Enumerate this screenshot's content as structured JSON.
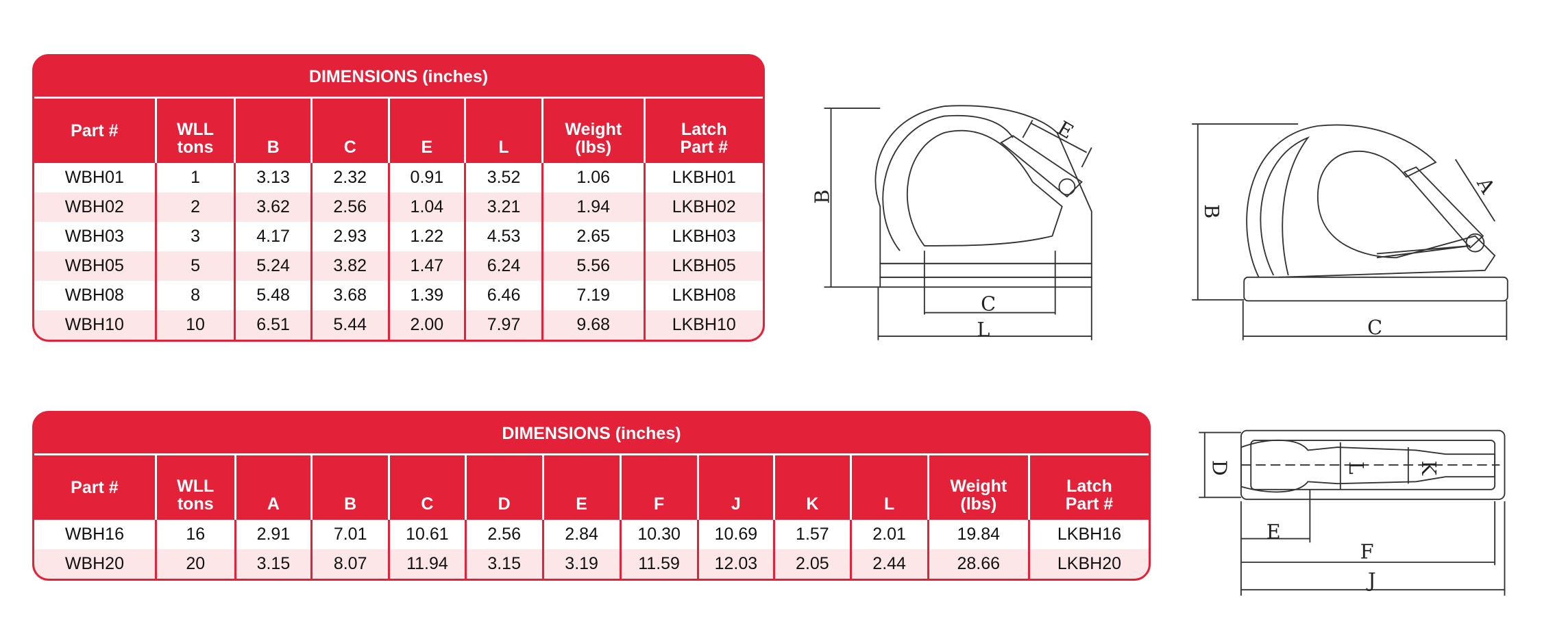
{
  "tables": [
    {
      "title": "DIMENSIONS (inches)",
      "headers": [
        "Part #",
        "WLL\ntons",
        "B",
        "C",
        "E",
        "L",
        "Weight\n(lbs)",
        "Latch\nPart #"
      ],
      "rows": [
        [
          "WBH01",
          "1",
          "3.13",
          "2.32",
          "0.91",
          "3.52",
          "1.06",
          "LKBH01"
        ],
        [
          "WBH02",
          "2",
          "3.62",
          "2.56",
          "1.04",
          "3.21",
          "1.94",
          "LKBH02"
        ],
        [
          "WBH03",
          "3",
          "4.17",
          "2.93",
          "1.22",
          "4.53",
          "2.65",
          "LKBH03"
        ],
        [
          "WBH05",
          "5",
          "5.24",
          "3.82",
          "1.47",
          "6.24",
          "5.56",
          "LKBH05"
        ],
        [
          "WBH08",
          "8",
          "5.48",
          "3.68",
          "1.39",
          "6.46",
          "7.19",
          "LKBH08"
        ],
        [
          "WBH10",
          "10",
          "6.51",
          "5.44",
          "2.00",
          "7.97",
          "9.68",
          "LKBH10"
        ]
      ]
    },
    {
      "title": "DIMENSIONS (inches)",
      "headers": [
        "Part #",
        "WLL\ntons",
        "A",
        "B",
        "C",
        "D",
        "E",
        "F",
        "J",
        "K",
        "L",
        "Weight\n(lbs)",
        "Latch\nPart #"
      ],
      "rows": [
        [
          "WBH16",
          "16",
          "2.91",
          "7.01",
          "10.61",
          "2.56",
          "2.84",
          "10.30",
          "10.69",
          "1.57",
          "2.01",
          "19.84",
          "LKBH16"
        ],
        [
          "WBH20",
          "20",
          "3.15",
          "8.07",
          "11.94",
          "3.15",
          "3.19",
          "11.59",
          "12.03",
          "2.05",
          "2.44",
          "28.66",
          "LKBH20"
        ]
      ]
    }
  ],
  "diagrams": [
    {
      "labels": [
        "B",
        "E",
        "C",
        "L"
      ]
    },
    {
      "labels": [
        "B",
        "A",
        "C"
      ]
    },
    {
      "labels": [
        "D",
        "L",
        "K",
        "E",
        "F",
        "J"
      ]
    }
  ]
}
